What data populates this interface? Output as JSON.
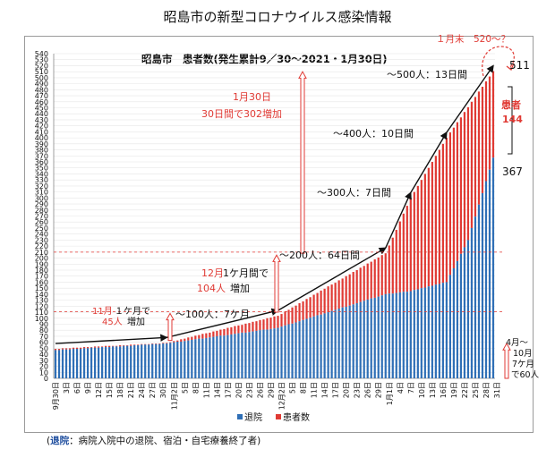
{
  "chart_data": {
    "type": "bar",
    "title": "昭島市の新型コロナウイルス感染情報",
    "subtitle": "昭島市　患者数(発生累計9／30〜2021・1月30日)",
    "ylim": [
      0,
      540
    ],
    "ytick_step": 10,
    "legend_position": "bottom",
    "series": [
      {
        "name": "退院",
        "color": "#2f6fb6"
      },
      {
        "name": "患者数",
        "color": "#e03a34"
      }
    ],
    "x_tick_labels": [
      "9月30日",
      "3日",
      "6日",
      "9日",
      "12日",
      "15日",
      "18日",
      "21日",
      "24日",
      "27日",
      "30日",
      "11月2日",
      "5日",
      "8日",
      "11日",
      "14日",
      "17日",
      "20日",
      "23日",
      "26日",
      "29日",
      "12月2日",
      "5日",
      "8日",
      "11日",
      "14日",
      "17日",
      "20日",
      "23日",
      "26日",
      "29日",
      "1月1日",
      "4日",
      "7日",
      "10日",
      "13日",
      "16日",
      "19日",
      "22日",
      "25日",
      "28日",
      "31日"
    ],
    "total_anchors": [
      [
        0,
        49
      ],
      [
        31,
        59
      ],
      [
        62,
        104
      ],
      [
        92,
        208
      ],
      [
        99,
        300
      ],
      [
        109,
        400
      ],
      [
        122,
        511
      ]
    ],
    "discharged_anchors": [
      [
        0,
        47
      ],
      [
        31,
        58
      ],
      [
        62,
        84
      ],
      [
        92,
        140
      ],
      [
        99,
        145
      ],
      [
        109,
        160
      ],
      [
        115,
        230
      ],
      [
        122,
        367
      ]
    ],
    "annotations": {
      "t100": "〜100人：7ケ月",
      "t200": "〜200人：64日間",
      "t300": "〜300人：7日間",
      "t400": "〜400人：10日間",
      "t500": "〜500人：13日間",
      "nov_a": "11月",
      "nov_b": "１ケ月で",
      "nov_c": "45人",
      "nov_d": "増加",
      "dec_a": "12月",
      "dec_b": "1ケ月間で",
      "dec_c": "104人",
      "dec_d": "増加",
      "jan_a": "1月30日",
      "jan_b": "30日間で302増加",
      "end_forecast": "１月末　520〜？",
      "total_label": "511",
      "patients_label_a": "患者",
      "patients_label_b": "144",
      "discharged_label": "367",
      "side_a": "4月〜",
      "side_b": "10月",
      "side_c": "7ケ月",
      "side_d": "で60人"
    }
  },
  "footnote": {
    "prefix": "(",
    "highlight": "退院",
    "rest": "：病院入院中の退院、宿泊・自宅療養終了者)"
  }
}
